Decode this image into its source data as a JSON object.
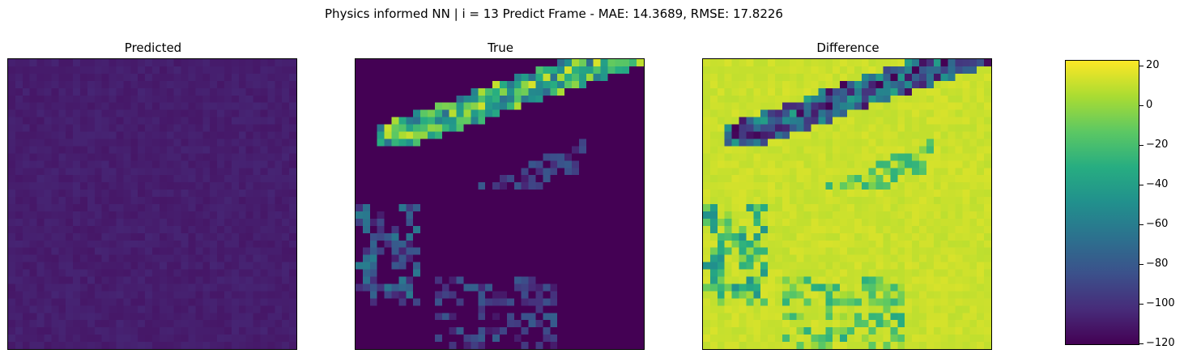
{
  "chart_data": {
    "type": "heatmap",
    "title": "Physics informed NN | i = 13 Predict Frame - MAE: 14.3689, RMSE: 17.8226",
    "panels": [
      {
        "title": "Predicted"
      },
      {
        "title": "True"
      },
      {
        "title": "Difference"
      }
    ],
    "grid_size": 40,
    "colormap": "viridis",
    "colorbar": {
      "vmin": -121,
      "vmax": 23,
      "ticks": [
        20,
        0,
        -20,
        -40,
        -60,
        -80,
        -100,
        -120
      ],
      "tick_labels": [
        "20",
        "0",
        "−20",
        "−40",
        "−60",
        "−80",
        "−100",
        "−120"
      ]
    },
    "grid": false,
    "axes_ticks": false
  }
}
